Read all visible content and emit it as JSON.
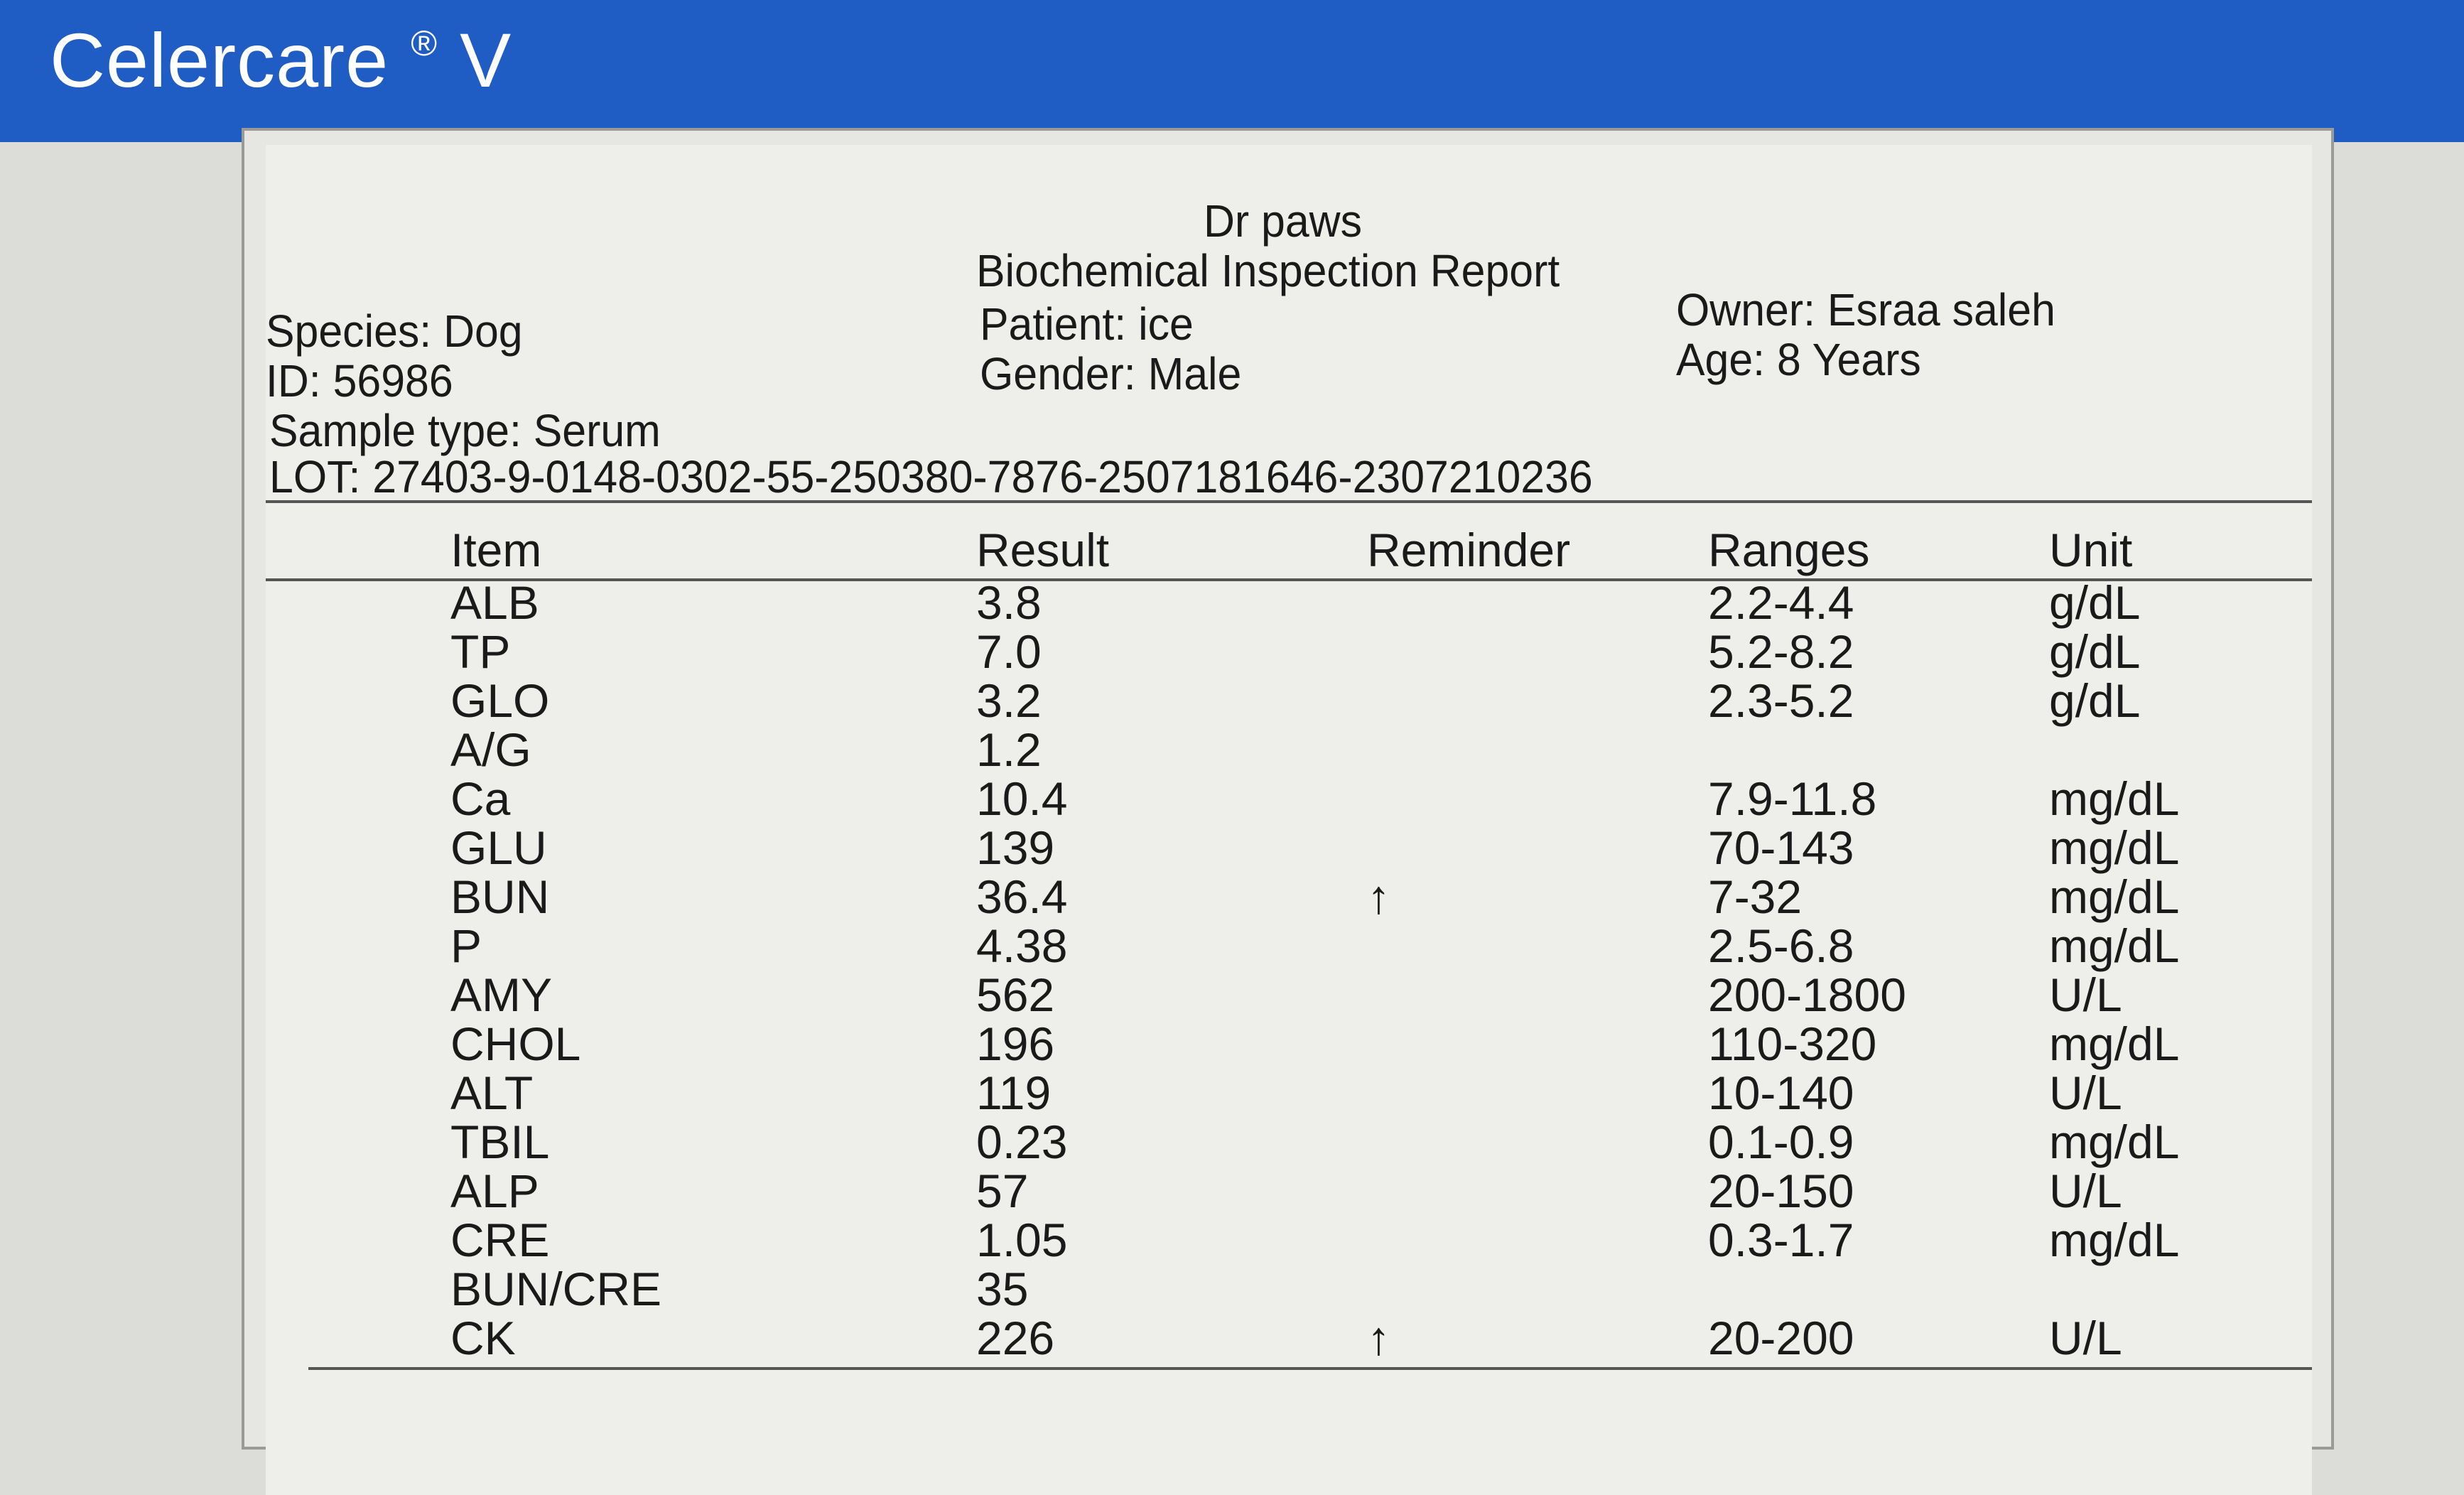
{
  "app": {
    "title": "Celercare",
    "title_mark": "®",
    "title_suffix": "V",
    "brand_color": "#1f5cc4"
  },
  "report": {
    "clinic": "Dr paws",
    "title": "Biochemical Inspection Report",
    "species": "Species: Dog",
    "id": "ID: 56986",
    "sample_type": "Sample type: Serum",
    "lot": "LOT:  27403-9-0148-0302-55-250380-7876-2507181646-2307210236",
    "patient": "Patient: ice",
    "gender": "Gender: Male",
    "owner": "Owner: Esraa saleh",
    "age": "Age: 8 Years"
  },
  "table": {
    "headers": [
      "Item",
      "Result",
      "Reminder",
      "Ranges",
      "Unit"
    ],
    "rows": [
      {
        "item": "ALB",
        "result": "3.8",
        "reminder": "",
        "range": "2.2-4.4",
        "unit": "g/dL"
      },
      {
        "item": "TP",
        "result": "7.0",
        "reminder": "",
        "range": "5.2-8.2",
        "unit": "g/dL"
      },
      {
        "item": "GLO",
        "result": "3.2",
        "reminder": "",
        "range": "2.3-5.2",
        "unit": "g/dL"
      },
      {
        "item": "A/G",
        "result": "1.2",
        "reminder": "",
        "range": "",
        "unit": ""
      },
      {
        "item": "Ca",
        "result": "10.4",
        "reminder": "",
        "range": "7.9-11.8",
        "unit": "mg/dL"
      },
      {
        "item": "GLU",
        "result": "139",
        "reminder": "",
        "range": "70-143",
        "unit": "mg/dL"
      },
      {
        "item": "BUN",
        "result": "36.4",
        "reminder": "↑",
        "range": "7-32",
        "unit": "mg/dL"
      },
      {
        "item": "P",
        "result": "4.38",
        "reminder": "",
        "range": "2.5-6.8",
        "unit": "mg/dL"
      },
      {
        "item": "AMY",
        "result": "562",
        "reminder": "",
        "range": "200-1800",
        "unit": "U/L"
      },
      {
        "item": "CHOL",
        "result": "196",
        "reminder": "",
        "range": "110-320",
        "unit": "mg/dL"
      },
      {
        "item": "ALT",
        "result": "119",
        "reminder": "",
        "range": "10-140",
        "unit": "U/L"
      },
      {
        "item": "TBIL",
        "result": "0.23",
        "reminder": "",
        "range": "0.1-0.9",
        "unit": "mg/dL"
      },
      {
        "item": "ALP",
        "result": "57",
        "reminder": "",
        "range": "20-150",
        "unit": "U/L"
      },
      {
        "item": "CRE",
        "result": "1.05",
        "reminder": "",
        "range": "0.3-1.7",
        "unit": "mg/dL"
      },
      {
        "item": "BUN/CRE",
        "result": "35",
        "reminder": "",
        "range": "",
        "unit": ""
      },
      {
        "item": "CK",
        "result": "226",
        "reminder": "↑",
        "range": "20-200",
        "unit": "U/L"
      }
    ]
  }
}
